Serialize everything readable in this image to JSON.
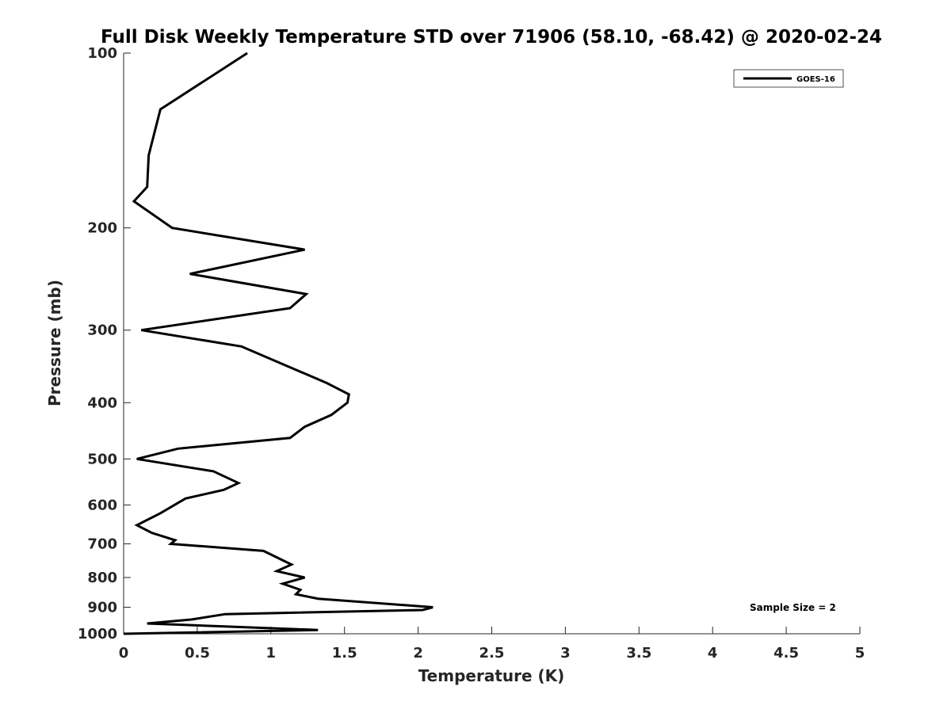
{
  "chart_data": {
    "type": "line",
    "title": "Full Disk Weekly Temperature STD over 71906 (58.10, -68.42) @ 2020-02-24",
    "xlabel": "Temperature (K)",
    "ylabel": "Pressure (mb)",
    "xlim": [
      0,
      5
    ],
    "ylim": [
      100,
      1000
    ],
    "y_scale": "log",
    "y_reversed": true,
    "x_ticks": [
      "0",
      "0.5",
      "1",
      "1.5",
      "2",
      "2.5",
      "3",
      "3.5",
      "4",
      "4.5",
      "5"
    ],
    "y_ticks": [
      "100",
      "200",
      "300",
      "400",
      "500",
      "600",
      "700",
      "800",
      "900",
      "1000"
    ],
    "grid": false,
    "legend_position": "top-right",
    "annotation": "Sample Size = 2",
    "series": [
      {
        "name": "GOES-16",
        "color": "#000000",
        "points": [
          [
            0.84,
            100
          ],
          [
            0.25,
            125
          ],
          [
            0.17,
            150
          ],
          [
            0.16,
            170
          ],
          [
            0.07,
            180
          ],
          [
            0.33,
            200
          ],
          [
            1.23,
            218
          ],
          [
            0.45,
            240
          ],
          [
            1.24,
            260
          ],
          [
            1.13,
            275
          ],
          [
            0.12,
            300
          ],
          [
            0.8,
            320
          ],
          [
            1.1,
            345
          ],
          [
            1.38,
            370
          ],
          [
            1.53,
            387
          ],
          [
            1.52,
            400
          ],
          [
            1.41,
            420
          ],
          [
            1.23,
            440
          ],
          [
            1.13,
            460
          ],
          [
            0.37,
            480
          ],
          [
            0.09,
            500
          ],
          [
            0.61,
            525
          ],
          [
            0.78,
            550
          ],
          [
            0.68,
            565
          ],
          [
            0.42,
            585
          ],
          [
            0.25,
            620
          ],
          [
            0.09,
            650
          ],
          [
            0.19,
            670
          ],
          [
            0.35,
            690
          ],
          [
            0.32,
            700
          ],
          [
            0.95,
            720
          ],
          [
            1.14,
            760
          ],
          [
            1.04,
            780
          ],
          [
            1.23,
            800
          ],
          [
            1.08,
            820
          ],
          [
            1.2,
            840
          ],
          [
            1.17,
            855
          ],
          [
            1.32,
            870
          ],
          [
            2.1,
            900
          ],
          [
            2.03,
            910
          ],
          [
            0.69,
            925
          ],
          [
            0.46,
            945
          ],
          [
            0.16,
            960
          ],
          [
            1.32,
            985
          ],
          [
            0.0,
            1000
          ]
        ]
      }
    ]
  }
}
